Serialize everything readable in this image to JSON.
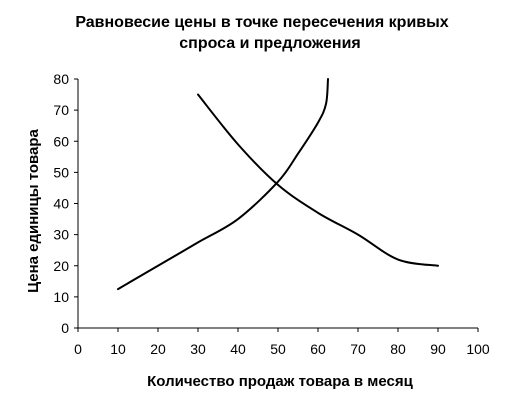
{
  "chart_data": {
    "type": "line",
    "title_lines": [
      "Равновесие цены в точке пересечения кривых",
      "спроса и предложения"
    ],
    "xlabel": "Количество продаж товара в месяц",
    "ylabel": "Цена единицы товара",
    "xlim": [
      0,
      100
    ],
    "ylim": [
      0,
      80
    ],
    "x_ticks": [
      0,
      10,
      20,
      30,
      40,
      50,
      60,
      70,
      80,
      90,
      100
    ],
    "x_tick_labels": [
      "0",
      "10",
      "20",
      "30",
      "40",
      "50",
      "60",
      "70",
      "80",
      "90",
      "100"
    ],
    "y_ticks": [
      0,
      10,
      20,
      30,
      40,
      50,
      60,
      70,
      80
    ],
    "y_tick_labels": [
      "0",
      "10",
      "20",
      "30",
      "40",
      "50",
      "60",
      "70",
      "80"
    ],
    "grid": false,
    "legend": false,
    "series": [
      {
        "color": "#000000",
        "x": [
          30,
          40,
          50,
          60,
          70,
          80,
          90
        ],
        "y": [
          75,
          59,
          46,
          37,
          30,
          22,
          20
        ]
      },
      {
        "color": "#000000",
        "x": [
          10,
          20,
          30,
          40,
          50,
          55,
          60,
          62,
          62.5
        ],
        "y": [
          12.5,
          20,
          27.5,
          35,
          47,
          56,
          66,
          72,
          80
        ]
      }
    ]
  }
}
